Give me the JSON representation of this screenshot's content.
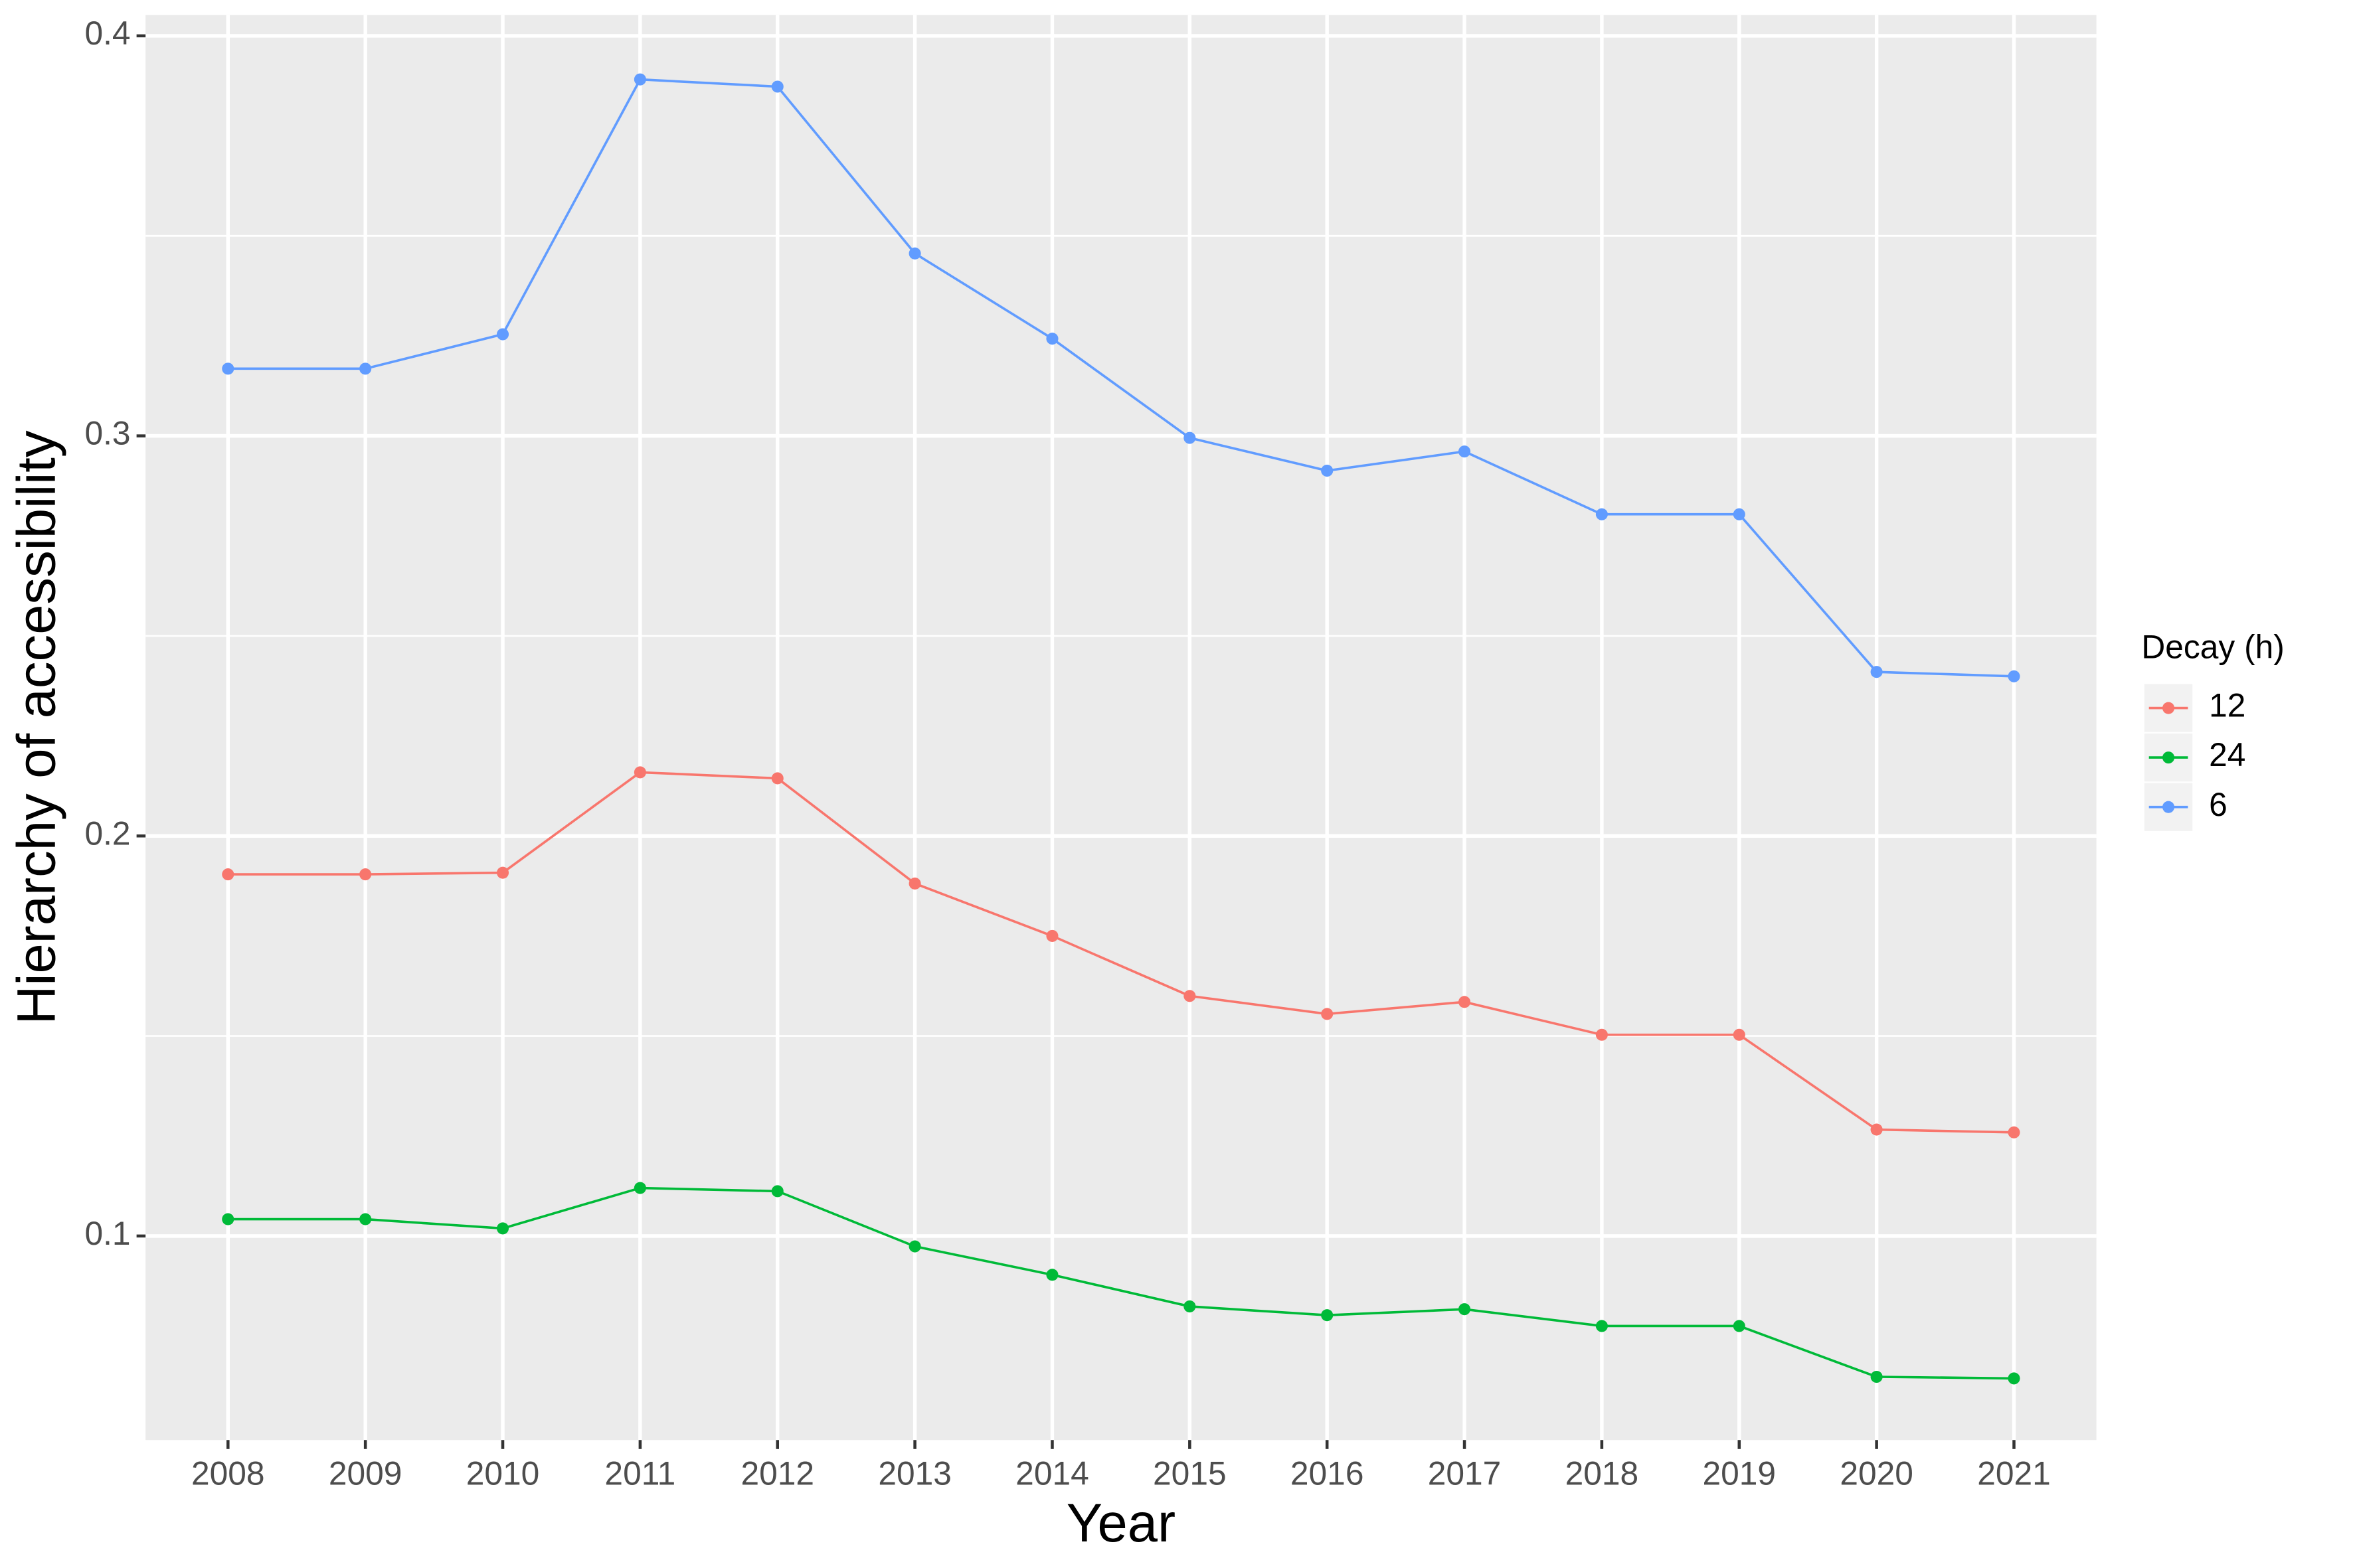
{
  "chart_data": {
    "type": "line",
    "x_label": "Year",
    "y_label": "Hierarchy of accessibility",
    "categories": [
      "2008",
      "2009",
      "2010",
      "2011",
      "2012",
      "2013",
      "2014",
      "2015",
      "2016",
      "2017",
      "2018",
      "2019",
      "2020",
      "2021"
    ],
    "series": [
      {
        "name": "12",
        "color": "#F8766D",
        "values": [
          0.1904,
          0.1904,
          0.1908,
          0.2159,
          0.2144,
          0.1881,
          0.175,
          0.16,
          0.1555,
          0.1585,
          0.1503,
          0.1503,
          0.1266,
          0.1259
        ]
      },
      {
        "name": "24",
        "color": "#00BA38",
        "values": [
          0.1042,
          0.1042,
          0.1019,
          0.112,
          0.1112,
          0.0974,
          0.0903,
          0.0824,
          0.0802,
          0.0817,
          0.0775,
          0.0775,
          0.0648,
          0.0644
        ]
      },
      {
        "name": "6",
        "color": "#619CFF",
        "values": [
          0.3168,
          0.3168,
          0.3254,
          0.3891,
          0.3873,
          0.3456,
          0.3243,
          0.2995,
          0.2913,
          0.2961,
          0.2804,
          0.2804,
          0.241,
          0.2399
        ]
      }
    ],
    "legend_title": "Decay (h)",
    "legend_position": "right",
    "ylim": [
      0.049,
      0.4052
    ],
    "yticks": [
      {
        "value": 0.1,
        "label": "0.1"
      },
      {
        "value": 0.2,
        "label": "0.2"
      },
      {
        "value": 0.3,
        "label": "0.3"
      },
      {
        "value": 0.4,
        "label": "0.4"
      }
    ],
    "minor_yticks": [
      0.15,
      0.25,
      0.35
    ],
    "grid": true
  }
}
